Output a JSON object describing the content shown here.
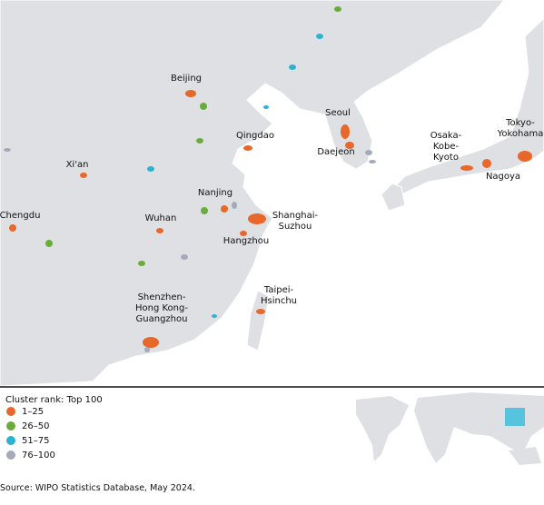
{
  "map": {
    "labels": [
      [
        "Beijing"
      ],
      [
        "Seoul"
      ],
      [
        "Qingdao"
      ],
      [
        "Daejeon"
      ],
      [
        "Osaka-",
        "Kobe-",
        "Kyoto"
      ],
      [
        "Tokyo-",
        "Yokohama"
      ],
      [
        "Nagoya"
      ],
      [
        "Xi'an"
      ],
      [
        "Nanjing"
      ],
      [
        "Shanghai-",
        "Suzhou"
      ],
      [
        "Chengdu"
      ],
      [
        "Wuhan"
      ],
      [
        "Hangzhou"
      ],
      [
        "Taipei-",
        "Hsinchu"
      ],
      [
        "Shenzhen-",
        "Hong Kong-",
        "Guangzhou"
      ]
    ]
  },
  "legend": {
    "title": "Cluster rank: Top 100",
    "items": [
      {
        "label": "1–25",
        "color": "#e8672a"
      },
      {
        "label": "26–50",
        "color": "#6aac3a"
      },
      {
        "label": "51–75",
        "color": "#2cb3d1"
      },
      {
        "label": "76–100",
        "color": "#a4a9bb"
      }
    ]
  },
  "source": "Source: WIPO Statistics Database, May 2024."
}
